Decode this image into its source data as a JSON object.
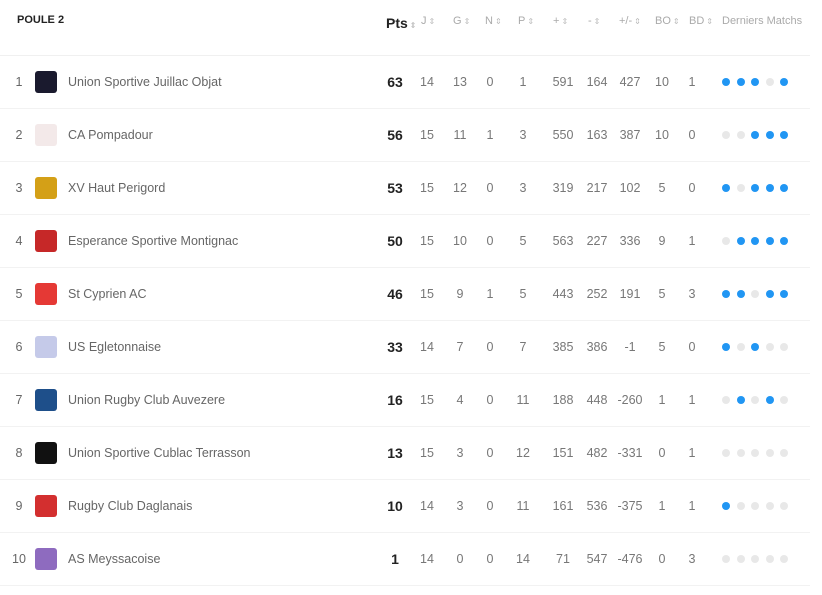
{
  "title": "POULE 2",
  "columns": [
    "Pts",
    "J",
    "G",
    "N",
    "P",
    "+",
    "-",
    "+/-",
    "BO",
    "BD",
    "Derniers Matchs"
  ],
  "colors": {
    "win": "#2196f3",
    "other": "#e8e8e8"
  },
  "rows": [
    {
      "rank": "1",
      "team": "Union Sportive Juillac Objat",
      "logo_color": "#1a1a2e",
      "pts": "63",
      "j": "14",
      "g": "13",
      "n": "0",
      "p": "1",
      "plus": "591",
      "minus": "164",
      "diff": "427",
      "bo": "10",
      "bd": "1",
      "last": [
        1,
        1,
        1,
        0,
        1
      ]
    },
    {
      "rank": "2",
      "team": "CA Pompadour",
      "logo_color": "#f3e9e9",
      "pts": "56",
      "j": "15",
      "g": "11",
      "n": "1",
      "p": "3",
      "plus": "550",
      "minus": "163",
      "diff": "387",
      "bo": "10",
      "bd": "0",
      "last": [
        0,
        0,
        1,
        1,
        1
      ]
    },
    {
      "rank": "3",
      "team": "XV Haut Perigord",
      "logo_color": "#d4a017",
      "pts": "53",
      "j": "15",
      "g": "12",
      "n": "0",
      "p": "3",
      "plus": "319",
      "minus": "217",
      "diff": "102",
      "bo": "5",
      "bd": "0",
      "last": [
        1,
        0,
        1,
        1,
        1
      ]
    },
    {
      "rank": "4",
      "team": "Esperance Sportive Montignac",
      "logo_color": "#c62828",
      "pts": "50",
      "j": "15",
      "g": "10",
      "n": "0",
      "p": "5",
      "plus": "563",
      "minus": "227",
      "diff": "336",
      "bo": "9",
      "bd": "1",
      "last": [
        0,
        1,
        1,
        1,
        1
      ]
    },
    {
      "rank": "5",
      "team": "St Cyprien AC",
      "logo_color": "#e53935",
      "pts": "46",
      "j": "15",
      "g": "9",
      "n": "1",
      "p": "5",
      "plus": "443",
      "minus": "252",
      "diff": "191",
      "bo": "5",
      "bd": "3",
      "last": [
        1,
        1,
        0,
        1,
        1
      ]
    },
    {
      "rank": "6",
      "team": "US Egletonnaise",
      "logo_color": "#c5cae9",
      "pts": "33",
      "j": "14",
      "g": "7",
      "n": "0",
      "p": "7",
      "plus": "385",
      "minus": "386",
      "diff": "-1",
      "bo": "5",
      "bd": "0",
      "last": [
        1,
        0,
        1,
        0,
        0
      ]
    },
    {
      "rank": "7",
      "team": "Union Rugby Club Auvezere",
      "logo_color": "#1e4f8a",
      "pts": "16",
      "j": "15",
      "g": "4",
      "n": "0",
      "p": "11",
      "plus": "188",
      "minus": "448",
      "diff": "-260",
      "bo": "1",
      "bd": "1",
      "last": [
        0,
        1,
        0,
        1,
        0
      ]
    },
    {
      "rank": "8",
      "team": "Union Sportive Cublac Terrasson",
      "logo_color": "#111111",
      "pts": "13",
      "j": "15",
      "g": "3",
      "n": "0",
      "p": "12",
      "plus": "151",
      "minus": "482",
      "diff": "-331",
      "bo": "0",
      "bd": "1",
      "last": [
        0,
        0,
        0,
        0,
        0
      ]
    },
    {
      "rank": "9",
      "team": "Rugby Club Daglanais",
      "logo_color": "#d32f2f",
      "pts": "10",
      "j": "14",
      "g": "3",
      "n": "0",
      "p": "11",
      "plus": "161",
      "minus": "536",
      "diff": "-375",
      "bo": "1",
      "bd": "1",
      "last": [
        1,
        0,
        0,
        0,
        0
      ]
    },
    {
      "rank": "10",
      "team": "AS Meyssacoise",
      "logo_color": "#8e6bbf",
      "pts": "1",
      "j": "14",
      "g": "0",
      "n": "0",
      "p": "14",
      "plus": "71",
      "minus": "547",
      "diff": "-476",
      "bo": "0",
      "bd": "3",
      "last": [
        0,
        0,
        0,
        0,
        0
      ]
    }
  ]
}
